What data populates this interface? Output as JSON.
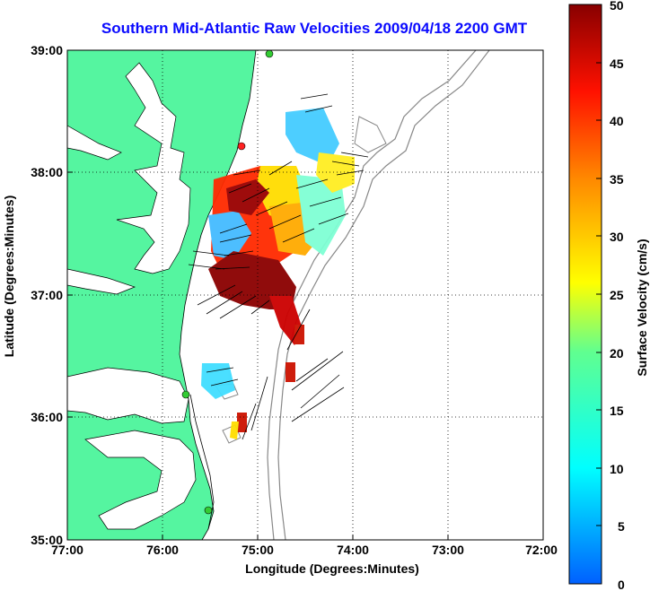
{
  "title": "Southern Mid-Atlantic Raw Velocities 2009/04/18 2200 GMT",
  "xlabel": "Longitude (Degrees:Minutes)",
  "ylabel": "Latitude (Degrees:Minutes)",
  "colorbar_label": "Surface Velocity (cm/s)",
  "x_ticks": [
    "77:00",
    "76:00",
    "75:00",
    "74:00",
    "73:00",
    "72:00"
  ],
  "y_ticks": [
    "39:00",
    "38:00",
    "37:00",
    "36:00",
    "35:00"
  ],
  "colorbar_ticks": [
    "50",
    "45",
    "40",
    "35",
    "30",
    "25",
    "20",
    "15",
    "10",
    "5",
    "0"
  ],
  "colors": {
    "land": "#55f5a0",
    "title": "#0a0aff",
    "station_active": "#33cc33",
    "station_inactive": "#ff2222"
  },
  "map": {
    "lon_range": [
      -77,
      -72
    ],
    "lat_range": [
      35,
      39
    ],
    "colorbar_range": [
      0,
      50
    ],
    "grid": "dotted"
  }
}
